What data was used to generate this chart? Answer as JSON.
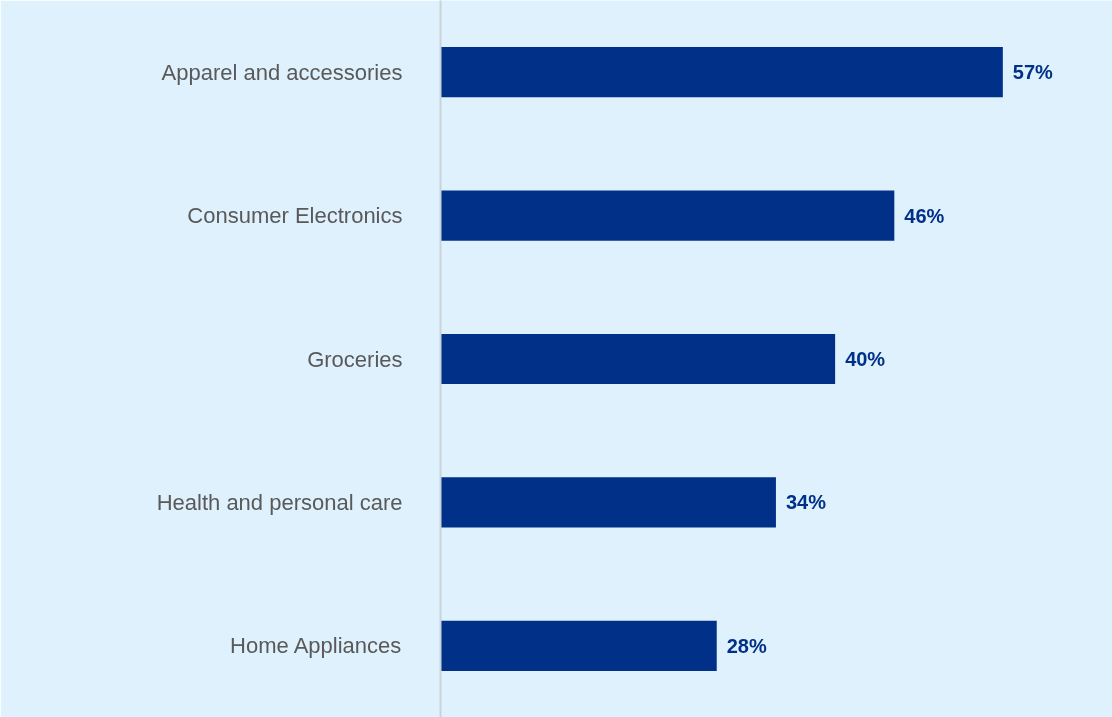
{
  "chart_data": {
    "type": "bar",
    "orientation": "horizontal",
    "categories": [
      "Apparel and accessories",
      "Consumer Electronics",
      "Groceries",
      "Health and personal care",
      "Home Appliances"
    ],
    "values": [
      57,
      46,
      40,
      34,
      28
    ],
    "value_labels": [
      "57%",
      "46%",
      "40%",
      "34%",
      "28%"
    ],
    "color": "#003087",
    "tick_labels": "y"
  }
}
